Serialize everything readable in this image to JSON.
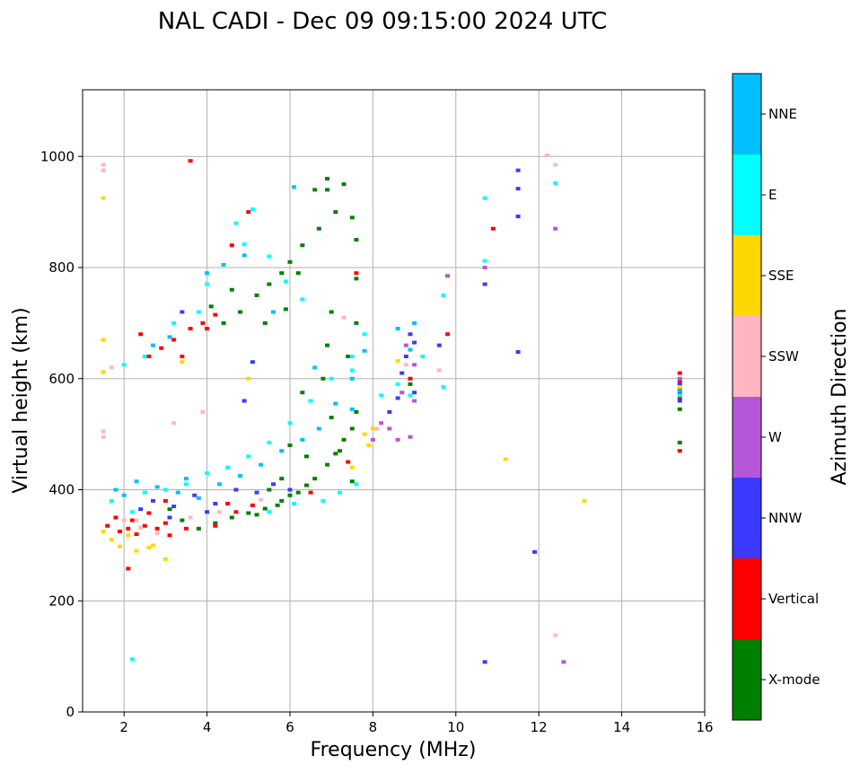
{
  "chart_data": {
    "type": "scatter",
    "title": "NAL CADI - Dec 09 09:15:00 2024 UTC",
    "xlabel": "Frequency (MHz)",
    "ylabel": "Virtual height (km)",
    "xlim": [
      1,
      16
    ],
    "ylim": [
      0,
      1120
    ],
    "x_ticks": [
      2,
      4,
      6,
      8,
      10,
      12,
      14,
      16
    ],
    "y_ticks": [
      0,
      200,
      400,
      600,
      800,
      1000
    ],
    "grid": true,
    "legend": {
      "title": "Azimuth Direction",
      "position": "right",
      "categories": [
        {
          "name": "X-mode",
          "color": "#008000"
        },
        {
          "name": "Vertical",
          "color": "#ff0000"
        },
        {
          "name": "NNW",
          "color": "#3a3aff"
        },
        {
          "name": "W",
          "color": "#b556d8"
        },
        {
          "name": "SSW",
          "color": "#ffb6c1"
        },
        {
          "name": "SSE",
          "color": "#ffd700"
        },
        {
          "name": "E",
          "color": "#00ffff"
        },
        {
          "name": "NNE",
          "color": "#00bfff"
        }
      ]
    },
    "series": [
      {
        "name": "X-mode",
        "points": [
          [
            3.1,
            365
          ],
          [
            3.4,
            345
          ],
          [
            3.8,
            330
          ],
          [
            4.2,
            340
          ],
          [
            4.6,
            350
          ],
          [
            5.0,
            358
          ],
          [
            5.4,
            366
          ],
          [
            5.8,
            380
          ],
          [
            6.2,
            395
          ],
          [
            6.6,
            420
          ],
          [
            6.9,
            445
          ],
          [
            7.1,
            465
          ],
          [
            7.3,
            490
          ],
          [
            7.5,
            510
          ],
          [
            7.6,
            540
          ],
          [
            7.0,
            530
          ],
          [
            6.5,
            560
          ],
          [
            6.3,
            575
          ],
          [
            6.8,
            600
          ],
          [
            7.4,
            640
          ],
          [
            6.9,
            660
          ],
          [
            5.2,
            355
          ],
          [
            5.7,
            372
          ],
          [
            6.0,
            390
          ],
          [
            6.4,
            408
          ],
          [
            7.2,
            470
          ],
          [
            7.5,
            415
          ],
          [
            4.4,
            700
          ],
          [
            4.8,
            720
          ],
          [
            5.2,
            750
          ],
          [
            5.5,
            770
          ],
          [
            5.8,
            790
          ],
          [
            6.0,
            810
          ],
          [
            6.3,
            840
          ],
          [
            6.7,
            870
          ],
          [
            7.1,
            900
          ],
          [
            7.5,
            890
          ],
          [
            4.1,
            730
          ],
          [
            4.6,
            760
          ],
          [
            5.4,
            700
          ],
          [
            5.9,
            725
          ],
          [
            6.2,
            790
          ],
          [
            6.6,
            940
          ],
          [
            6.9,
            960
          ],
          [
            7.3,
            950
          ],
          [
            7.6,
            780
          ],
          [
            7.6,
            700
          ],
          [
            7.0,
            720
          ],
          [
            6.4,
            460
          ],
          [
            6.0,
            480
          ],
          [
            5.8,
            420
          ],
          [
            5.5,
            400
          ],
          [
            8.9,
            590
          ],
          [
            15.4,
            545
          ],
          [
            15.4,
            485
          ],
          [
            7.6,
            850
          ],
          [
            6.9,
            940
          ]
        ]
      },
      {
        "name": "Vertical",
        "points": [
          [
            1.6,
            335
          ],
          [
            1.9,
            325
          ],
          [
            2.1,
            330
          ],
          [
            2.3,
            320
          ],
          [
            2.5,
            335
          ],
          [
            2.8,
            330
          ],
          [
            3.1,
            318
          ],
          [
            3.5,
            330
          ],
          [
            1.8,
            350
          ],
          [
            2.2,
            345
          ],
          [
            2.6,
            358
          ],
          [
            3.0,
            340
          ],
          [
            4.2,
            335
          ],
          [
            4.7,
            360
          ],
          [
            5.1,
            372
          ],
          [
            4.5,
            375
          ],
          [
            2.6,
            640
          ],
          [
            2.9,
            655
          ],
          [
            3.2,
            670
          ],
          [
            3.6,
            690
          ],
          [
            3.9,
            700
          ],
          [
            4.2,
            715
          ],
          [
            2.4,
            680
          ],
          [
            3.4,
            640
          ],
          [
            4.0,
            690
          ],
          [
            5.0,
            900
          ],
          [
            3.6,
            992
          ],
          [
            2.1,
            258
          ],
          [
            7.6,
            790
          ],
          [
            9.8,
            680
          ],
          [
            10.9,
            870
          ],
          [
            8.9,
            600
          ],
          [
            15.4,
            470
          ],
          [
            15.4,
            565
          ],
          [
            15.4,
            580
          ],
          [
            15.4,
            595
          ],
          [
            15.4,
            610
          ],
          [
            7.4,
            450
          ],
          [
            6.5,
            395
          ],
          [
            4.6,
            840
          ],
          [
            3.0,
            380
          ]
        ]
      },
      {
        "name": "NNW",
        "points": [
          [
            2.7,
            380
          ],
          [
            3.2,
            370
          ],
          [
            3.7,
            390
          ],
          [
            4.2,
            375
          ],
          [
            4.7,
            400
          ],
          [
            5.2,
            395
          ],
          [
            5.6,
            410
          ],
          [
            4.0,
            360
          ],
          [
            3.1,
            350
          ],
          [
            2.4,
            365
          ],
          [
            8.9,
            680
          ],
          [
            9.0,
            665
          ],
          [
            8.8,
            640
          ],
          [
            8.6,
            565
          ],
          [
            8.4,
            540
          ],
          [
            9.6,
            660
          ],
          [
            10.7,
            770
          ],
          [
            10.7,
            90
          ],
          [
            11.5,
            975
          ],
          [
            11.5,
            942
          ],
          [
            11.5,
            892
          ],
          [
            11.5,
            648
          ],
          [
            11.9,
            288
          ],
          [
            15.4,
            560
          ],
          [
            15.4,
            575
          ],
          [
            15.4,
            590
          ],
          [
            8.7,
            610
          ],
          [
            4.9,
            560
          ],
          [
            5.1,
            630
          ],
          [
            6.0,
            400
          ],
          [
            3.4,
            720
          ],
          [
            9.0,
            575
          ]
        ]
      },
      {
        "name": "W",
        "points": [
          [
            8.9,
            495
          ],
          [
            8.6,
            490
          ],
          [
            9.0,
            560
          ],
          [
            8.4,
            510
          ],
          [
            8.2,
            520
          ],
          [
            8.0,
            490
          ],
          [
            9.8,
            785
          ],
          [
            10.7,
            800
          ],
          [
            12.4,
            870
          ],
          [
            12.6,
            90
          ],
          [
            8.7,
            575
          ],
          [
            8.8,
            660
          ],
          [
            9.0,
            625
          ],
          [
            15.4,
            600
          ]
        ]
      },
      {
        "name": "SSW",
        "points": [
          [
            1.5,
            985
          ],
          [
            1.5,
            975
          ],
          [
            1.5,
            505
          ],
          [
            1.5,
            495
          ],
          [
            3.2,
            520
          ],
          [
            3.9,
            540
          ],
          [
            12.2,
            1002
          ],
          [
            12.4,
            985
          ],
          [
            12.4,
            138
          ],
          [
            9.6,
            615
          ],
          [
            8.8,
            625
          ],
          [
            2.0,
            345
          ],
          [
            2.4,
            332
          ],
          [
            2.8,
            322
          ],
          [
            3.6,
            350
          ],
          [
            4.3,
            360
          ],
          [
            5.3,
            382
          ],
          [
            7.3,
            710
          ],
          [
            8.1,
            510
          ],
          [
            1.7,
            620
          ],
          [
            2.3,
            345
          ]
        ]
      },
      {
        "name": "SSE",
        "points": [
          [
            1.5,
            325
          ],
          [
            1.7,
            310
          ],
          [
            1.9,
            298
          ],
          [
            2.3,
            290
          ],
          [
            2.7,
            300
          ],
          [
            1.5,
            925
          ],
          [
            1.5,
            670
          ],
          [
            1.5,
            612
          ],
          [
            3.4,
            630
          ],
          [
            5.0,
            600
          ],
          [
            7.8,
            500
          ],
          [
            8.6,
            632
          ],
          [
            11.2,
            455
          ],
          [
            13.1,
            380
          ],
          [
            7.5,
            440
          ],
          [
            15.4,
            585
          ],
          [
            2.1,
            318
          ],
          [
            2.6,
            296
          ],
          [
            3.0,
            275
          ],
          [
            8.0,
            510
          ],
          [
            7.9,
            480
          ]
        ]
      },
      {
        "name": "E",
        "points": [
          [
            2.2,
            95
          ],
          [
            2.5,
            395
          ],
          [
            3.0,
            400
          ],
          [
            3.5,
            410
          ],
          [
            4.0,
            430
          ],
          [
            4.5,
            440
          ],
          [
            5.0,
            460
          ],
          [
            5.5,
            485
          ],
          [
            6.0,
            520
          ],
          [
            6.5,
            560
          ],
          [
            7.0,
            600
          ],
          [
            7.5,
            640
          ],
          [
            7.8,
            680
          ],
          [
            8.2,
            570
          ],
          [
            8.6,
            590
          ],
          [
            9.2,
            640
          ],
          [
            9.7,
            750
          ],
          [
            10.7,
            925
          ],
          [
            10.7,
            812
          ],
          [
            12.4,
            952
          ],
          [
            6.3,
            743
          ],
          [
            5.9,
            775
          ],
          [
            5.5,
            820
          ],
          [
            4.9,
            842
          ],
          [
            4.0,
            770
          ],
          [
            4.7,
            880
          ],
          [
            5.1,
            905
          ],
          [
            3.8,
            720
          ],
          [
            3.2,
            700
          ],
          [
            2.5,
            640
          ],
          [
            2.0,
            625
          ],
          [
            1.7,
            380
          ],
          [
            2.2,
            360
          ],
          [
            6.8,
            380
          ],
          [
            7.2,
            395
          ],
          [
            7.6,
            410
          ],
          [
            6.1,
            375
          ],
          [
            5.5,
            360
          ],
          [
            9.7,
            585
          ],
          [
            8.9,
            570
          ],
          [
            15.4,
            570
          ],
          [
            7.5,
            615
          ]
        ]
      },
      {
        "name": "NNE",
        "points": [
          [
            1.8,
            400
          ],
          [
            2.3,
            415
          ],
          [
            2.8,
            405
          ],
          [
            3.3,
            395
          ],
          [
            3.8,
            385
          ],
          [
            4.3,
            410
          ],
          [
            4.8,
            425
          ],
          [
            5.3,
            445
          ],
          [
            5.8,
            470
          ],
          [
            6.3,
            490
          ],
          [
            6.7,
            510
          ],
          [
            7.1,
            555
          ],
          [
            7.5,
            600
          ],
          [
            7.8,
            650
          ],
          [
            8.6,
            690
          ],
          [
            9.0,
            700
          ],
          [
            8.9,
            652
          ],
          [
            4.0,
            790
          ],
          [
            4.4,
            805
          ],
          [
            4.9,
            822
          ],
          [
            2.7,
            660
          ],
          [
            3.1,
            675
          ],
          [
            6.1,
            945
          ],
          [
            7.5,
            545
          ],
          [
            6.6,
            620
          ],
          [
            2.0,
            390
          ],
          [
            3.5,
            420
          ],
          [
            15.4,
            578
          ],
          [
            5.6,
            720
          ]
        ]
      }
    ]
  }
}
